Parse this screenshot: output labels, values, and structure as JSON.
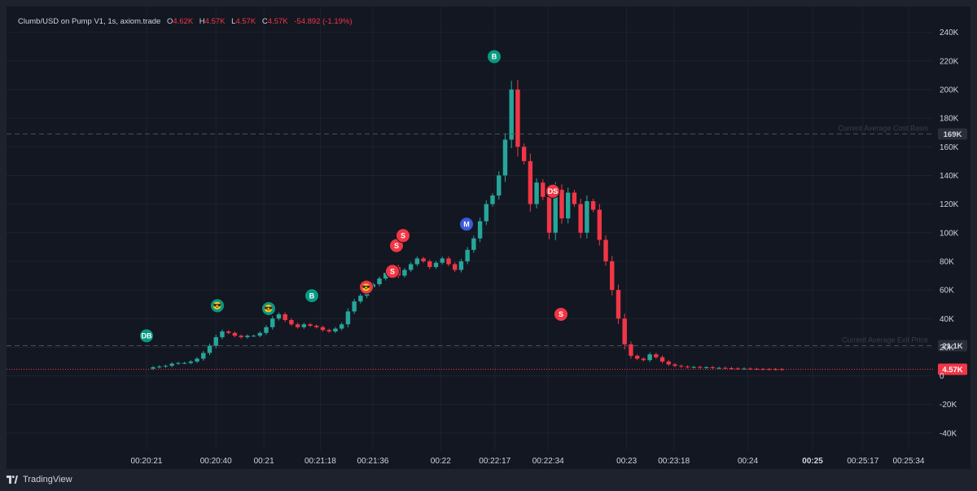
{
  "legend": {
    "symbol": "Clumb/USD on Pump V1, 1s, axiom.trade",
    "o_label": "O",
    "o_value": "4.62K",
    "h_label": "H",
    "h_value": "4.57K",
    "l_label": "L",
    "l_value": "4.57K",
    "c_label": "C",
    "c_value": "4.57K",
    "change": "-54.892 (-1.19%)"
  },
  "footer": {
    "brand": "TradingView"
  },
  "colors": {
    "up": "#26a69a",
    "down": "#f23645",
    "background": "#131722",
    "text": "#d1d4dc",
    "buy_marker": "#089981",
    "sell_marker": "#f23645",
    "migrate_marker": "#3b5bdb"
  },
  "chart_data": {
    "type": "candlestick",
    "title": "Clumb/USD on Pump V1, 1s, axiom.trade",
    "y_axis": {
      "ticks": [
        -40000,
        -20000,
        0,
        20000,
        40000,
        60000,
        80000,
        100000,
        120000,
        140000,
        160000,
        180000,
        200000,
        220000,
        240000
      ],
      "tick_labels": [
        "-40K",
        "-20K",
        "0",
        "20K",
        "40K",
        "60K",
        "80K",
        "100K",
        "120K",
        "140K",
        "160K",
        "180K",
        "200K",
        "220K",
        "240K"
      ],
      "ylim": [
        -52000,
        258000
      ],
      "position": "right"
    },
    "x_axis": {
      "tick_labels": [
        "00:20:21",
        "00:20:40",
        "00:21",
        "00:21:18",
        "00:21:36",
        "00:22",
        "00:22:17",
        "00:22:34",
        "00:23",
        "00:23:18",
        "00:24",
        "00:25",
        "00:25:17",
        "00:25:34"
      ],
      "bold_labels": [
        "00:25"
      ]
    },
    "grid": true,
    "price_line_segments": [
      [
        0.0,
        6000,
        6500,
        7000,
        8500,
        9000,
        9000,
        10000,
        12000,
        16000,
        21000,
        27000,
        31000,
        30000,
        28000,
        27000,
        28000
      ],
      [
        0.165,
        28000,
        30000,
        34000,
        40000,
        43000,
        39000,
        36000,
        34000,
        36000,
        35000,
        34000,
        32000,
        31000,
        33000,
        36000,
        45000,
        52000,
        56000,
        62000
      ],
      [
        0.42,
        64000,
        68000,
        72000,
        76000,
        70000,
        74000,
        78000,
        82000,
        80000,
        76000,
        79000,
        82000,
        78000,
        74000,
        80000,
        88000,
        96000,
        108000,
        120000,
        126000
      ]
    ],
    "drawn_series_note": "",
    "horizontal_lines": [
      {
        "label": "Current Average Cost Basis",
        "value": 169000,
        "tag": "169K",
        "style": "dashed"
      },
      {
        "label": "Current Average Exit Price",
        "value": 21100,
        "tag": "21.1K",
        "style": "dashed"
      },
      {
        "label": "",
        "value": 4570,
        "tag": "4.57K",
        "style": "dotted-red"
      }
    ],
    "trade_markers": [
      {
        "label": "DB",
        "type": "buy",
        "time_index": 0,
        "price": 28000
      },
      {
        "label": "😎",
        "type": "buy",
        "time_index": 15,
        "price": 49000
      },
      {
        "label": "😎",
        "type": "buy",
        "time_index": 28,
        "price": 47000
      },
      {
        "label": "B",
        "type": "buy",
        "time_index": 36,
        "price": 56000
      },
      {
        "label": "😎",
        "type": "sell",
        "time_index": 48,
        "price": 62000
      },
      {
        "label": "S",
        "type": "sell",
        "time_index": 54,
        "price": 73000
      },
      {
        "label": "S",
        "type": "sell",
        "time_index": 56,
        "price": 91000
      },
      {
        "label": "S",
        "type": "sell",
        "time_index": 67,
        "price": 98000
      },
      {
        "label": "M",
        "type": "migrate",
        "time_index": 72,
        "price": 106000
      },
      {
        "label": "B",
        "type": "buy",
        "time_index": 79,
        "price": 223000
      },
      {
        "label": "DS",
        "type": "sell",
        "time_index": 94,
        "price": 129000
      },
      {
        "label": "S",
        "type": "sell",
        "time_index": 95,
        "price": 43000
      }
    ]
  }
}
